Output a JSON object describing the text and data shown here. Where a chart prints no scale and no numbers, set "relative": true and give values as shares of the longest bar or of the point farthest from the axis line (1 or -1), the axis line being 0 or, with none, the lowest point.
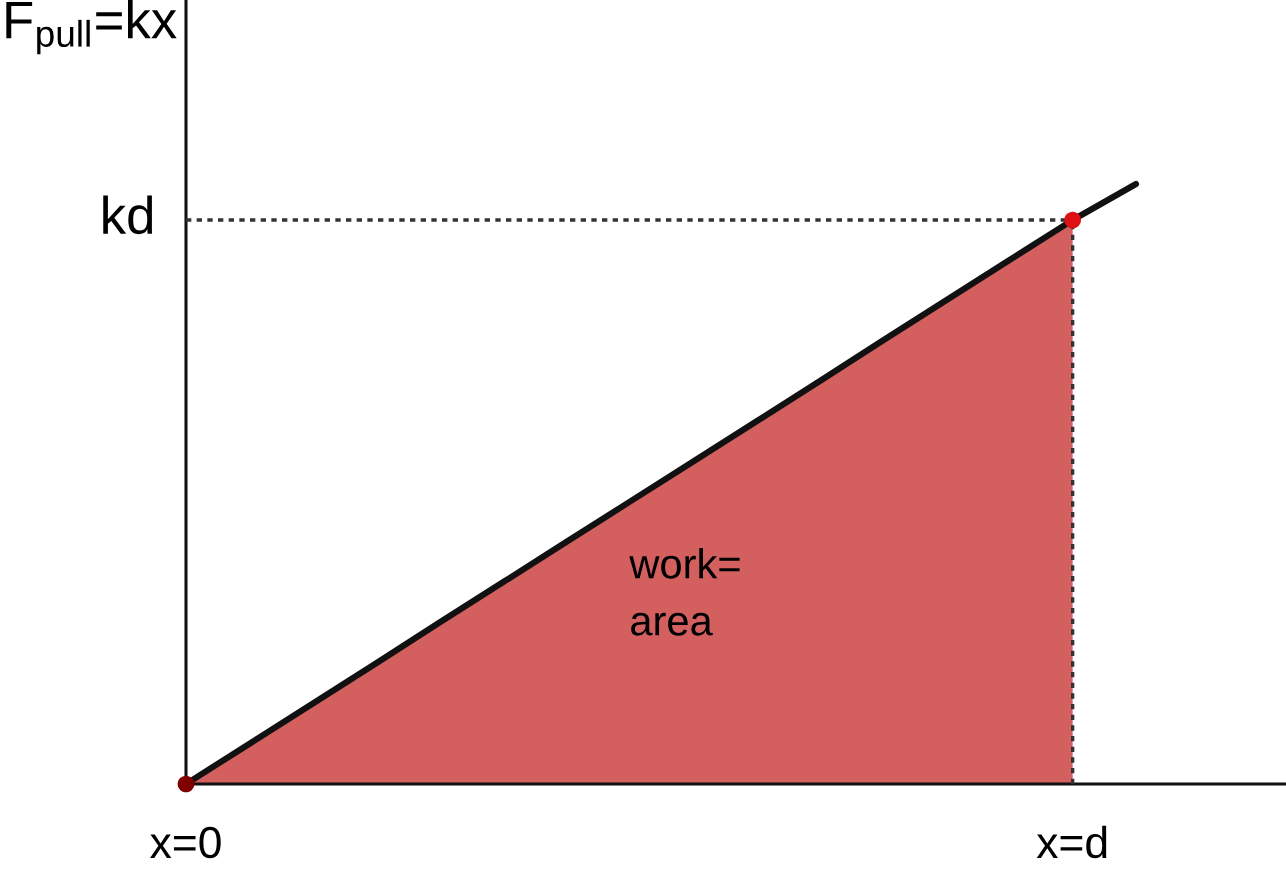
{
  "chart_data": {
    "type": "line",
    "relative": true,
    "ylabel": "F$_{pull}$=kx",
    "categories": [
      "x=0",
      null,
      null,
      null,
      null,
      null,
      null,
      null,
      null,
      null,
      null,
      null,
      null,
      null,
      "x=d",
      null
    ],
    "series": [
      {
        "type": "area",
        "color": "#d35f5f",
        "values": [
          0,
          0.067,
          0.134,
          0.201,
          0.269,
          0.336,
          0.403,
          0.47,
          0.537,
          0.604,
          0.671,
          0.739,
          0.806,
          0.873,
          0.94,
          null
        ]
      },
      {
        "color": "#111111",
        "line_style": "solid",
        "values": [
          0,
          0.067,
          0.134,
          0.201,
          0.269,
          0.336,
          0.403,
          0.47,
          0.537,
          0.604,
          0.671,
          0.739,
          0.806,
          0.873,
          0.94,
          1
        ]
      },
      {
        "type": "line",
        "name": "kd",
        "color": "#333333",
        "line_style": "dotted",
        "values": [
          0.94,
          0.94,
          0.94,
          0.94,
          0.94,
          0.94,
          0.94,
          0.94,
          0.94,
          0.94,
          0.94,
          0.94,
          0.94,
          0.94,
          0.94,
          null
        ]
      },
      {
        "type": "lollipop",
        "color": "#333333",
        "line_style": "dotted",
        "marker": "circle",
        "colors": [
          "#800000",
          null,
          null,
          null,
          null,
          null,
          null,
          null,
          null,
          null,
          null,
          null,
          null,
          null,
          "#dd1111",
          null
        ],
        "values": [
          0,
          null,
          null,
          null,
          null,
          null,
          null,
          null,
          null,
          null,
          null,
          null,
          null,
          null,
          0.94,
          null
        ]
      }
    ],
    "annotations": [
      "work=\narea"
    ]
  }
}
